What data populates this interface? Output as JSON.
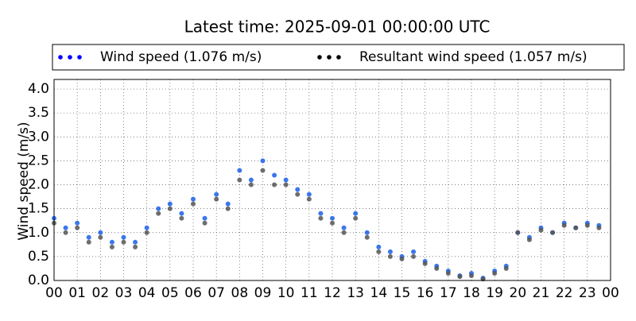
{
  "chart_data": {
    "type": "scatter",
    "title": "Latest time: 2025-09-01 00:00:00 UTC",
    "y_label": "Wind speed (m/s)",
    "x": [
      0,
      0.5,
      1,
      1.5,
      2,
      2.5,
      3,
      3.5,
      4,
      4.5,
      5,
      5.5,
      6,
      6.5,
      7,
      7.5,
      8,
      8.5,
      9,
      9.5,
      10,
      10.5,
      11,
      11.5,
      12,
      12.5,
      13,
      13.5,
      14,
      14.5,
      15,
      15.5,
      16,
      16.5,
      17,
      17.5,
      18,
      18.5,
      19,
      19.5,
      20,
      20.5,
      21,
      21.5,
      22,
      22.5,
      23,
      23.5
    ],
    "series": [
      {
        "name": "Wind speed (1.076 m/s)",
        "color": "#1a5fe8",
        "legend_color": "#0000ff",
        "values": [
          1.3,
          1.1,
          1.2,
          0.9,
          1.0,
          0.8,
          0.9,
          0.8,
          1.1,
          1.5,
          1.6,
          1.4,
          1.7,
          1.3,
          1.8,
          1.6,
          2.3,
          2.1,
          2.5,
          2.2,
          2.1,
          1.9,
          1.8,
          1.4,
          1.3,
          1.1,
          1.4,
          1.0,
          0.7,
          0.6,
          0.5,
          0.6,
          0.4,
          0.3,
          0.2,
          0.1,
          0.15,
          0.05,
          0.2,
          0.3,
          1.0,
          0.9,
          1.1,
          1.0,
          1.2,
          1.1,
          1.2,
          1.15
        ]
      },
      {
        "name": "Resultant wind speed (1.057 m/s)",
        "color": "#555555",
        "legend_color": "#000000",
        "values": [
          1.2,
          1.0,
          1.1,
          0.8,
          0.9,
          0.7,
          0.8,
          0.7,
          1.0,
          1.4,
          1.5,
          1.3,
          1.6,
          1.2,
          1.7,
          1.5,
          2.1,
          2.0,
          2.3,
          2.0,
          2.0,
          1.8,
          1.7,
          1.3,
          1.2,
          1.0,
          1.3,
          0.9,
          0.6,
          0.5,
          0.45,
          0.5,
          0.35,
          0.25,
          0.15,
          0.08,
          0.1,
          0.03,
          0.15,
          0.25,
          1.0,
          0.85,
          1.05,
          1.0,
          1.15,
          1.1,
          1.15,
          1.1
        ]
      }
    ],
    "xlim": [
      0,
      24
    ],
    "xticks": [
      {
        "value": 0,
        "label": "00"
      },
      {
        "value": 1,
        "label": "01"
      },
      {
        "value": 2,
        "label": "02"
      },
      {
        "value": 3,
        "label": "03"
      },
      {
        "value": 4,
        "label": "04"
      },
      {
        "value": 5,
        "label": "05"
      },
      {
        "value": 6,
        "label": "06"
      },
      {
        "value": 7,
        "label": "07"
      },
      {
        "value": 8,
        "label": "08"
      },
      {
        "value": 9,
        "label": "09"
      },
      {
        "value": 10,
        "label": "10"
      },
      {
        "value": 11,
        "label": "11"
      },
      {
        "value": 12,
        "label": "12"
      },
      {
        "value": 13,
        "label": "13"
      },
      {
        "value": 14,
        "label": "14"
      },
      {
        "value": 15,
        "label": "15"
      },
      {
        "value": 16,
        "label": "16"
      },
      {
        "value": 17,
        "label": "17"
      },
      {
        "value": 18,
        "label": "18"
      },
      {
        "value": 19,
        "label": "19"
      },
      {
        "value": 20,
        "label": "20"
      },
      {
        "value": 21,
        "label": "21"
      },
      {
        "value": 22,
        "label": "22"
      },
      {
        "value": 23,
        "label": "23"
      },
      {
        "value": 24,
        "label": "00"
      }
    ],
    "ylim": [
      0,
      4.2
    ],
    "yticks": [
      {
        "value": 0,
        "label": "0.0"
      },
      {
        "value": 0.5,
        "label": "0.5"
      },
      {
        "value": 1,
        "label": "1.0"
      },
      {
        "value": 1.5,
        "label": "1.5"
      },
      {
        "value": 2,
        "label": "2.0"
      },
      {
        "value": 2.5,
        "label": "2.5"
      },
      {
        "value": 3,
        "label": "3.0"
      },
      {
        "value": 3.5,
        "label": "3.5"
      },
      {
        "value": 4,
        "label": "4.0"
      }
    ],
    "grid": true
  }
}
